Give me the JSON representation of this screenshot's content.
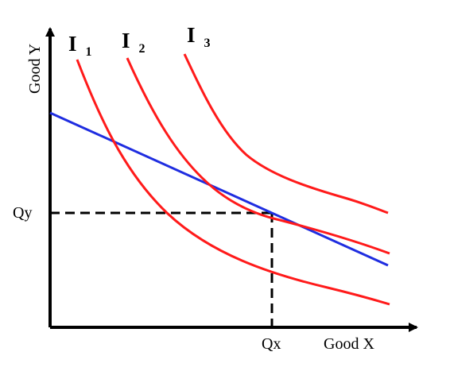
{
  "axes": {
    "y_label": "Good Y",
    "x_label": "Good X",
    "qx_label": "Qx",
    "qy_label": "Qy"
  },
  "curves": [
    {
      "label_main": "I",
      "label_sub": "1",
      "color": "#ff1a1a"
    },
    {
      "label_main": "I",
      "label_sub": "2",
      "color": "#ff1a1a"
    },
    {
      "label_main": "I",
      "label_sub": "3",
      "color": "#ff1a1a"
    }
  ],
  "budget_line": {
    "color": "#1f2de0"
  },
  "colors": {
    "axis": "#000000",
    "guide": "#000000"
  }
}
